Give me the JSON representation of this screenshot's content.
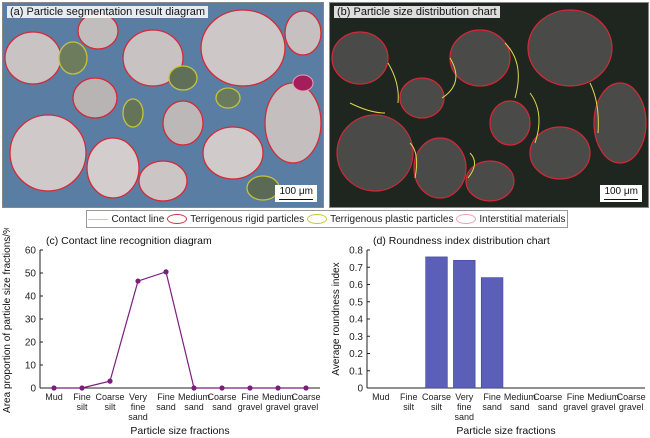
{
  "panels": {
    "a_title": "(a) Particle segmentation result diagram",
    "b_title": "(b) Particle size distribution chart",
    "scale_label": "100 μm"
  },
  "legend": {
    "items": [
      {
        "label": "Contact line",
        "color": "#d4d46a",
        "shape": "line"
      },
      {
        "label": "Terrigenous rigid particles",
        "color": "#cc3344",
        "shape": "ellipse"
      },
      {
        "label": "Terrigenous plastic particles",
        "color": "#c8c832",
        "shape": "ellipse"
      },
      {
        "label": "Interstitial materials",
        "color": "#e8a0b4",
        "shape": "ellipse"
      }
    ]
  },
  "chart_data": [
    {
      "type": "line",
      "title": "(c) Contact line recognition diagram",
      "xlabel": "Particle size fractions",
      "ylabel": "Area proportion of particle size fractions/%",
      "ylim": [
        0,
        60
      ],
      "yticks": [
        0,
        10,
        20,
        30,
        40,
        50,
        60
      ],
      "categories": [
        "Mud",
        "Fine silt",
        "Coarse silt",
        "Very fine sand",
        "Fine sand",
        "Medium sand",
        "Coarse sand",
        "Fine gravel",
        "Medium gravel",
        "Coarse gravel"
      ],
      "category_lines": [
        [
          "Mud"
        ],
        [
          "Fine",
          "silt"
        ],
        [
          "Coarse",
          "silt"
        ],
        [
          "Very",
          "fine",
          "sand"
        ],
        [
          "Fine",
          "sand"
        ],
        [
          "Medium",
          "sand"
        ],
        [
          "Coarse",
          "sand"
        ],
        [
          "Fine",
          "gravel"
        ],
        [
          "Medium",
          "gravel"
        ],
        [
          "Coarse",
          "gravel"
        ]
      ],
      "values": [
        0,
        0,
        3,
        46.5,
        50.5,
        0,
        0,
        0,
        0,
        0
      ],
      "color": "#7b1f7b"
    },
    {
      "type": "bar",
      "title": "(d) Roundness index distribution chart",
      "xlabel": "Particle size fractions",
      "ylabel": "Average roundness index",
      "ylim": [
        0,
        0.8
      ],
      "yticks": [
        "0",
        "0.1",
        "0.2",
        "0.3",
        "0.4",
        "0.5",
        "0.6",
        "0.7",
        "0.8"
      ],
      "categories": [
        "Mud",
        "Fine silt",
        "Coarse silt",
        "Very fine sand",
        "Fine sand",
        "Medium sand",
        "Coarse sand",
        "Fine gravel",
        "Medium gravel",
        "Coarse gravel"
      ],
      "category_lines": [
        [
          "Mud"
        ],
        [
          "Fine",
          "silt"
        ],
        [
          "Coarse",
          "silt"
        ],
        [
          "Very",
          "fine",
          "sand"
        ],
        [
          "Fine",
          "sand"
        ],
        [
          "Medium",
          "sand"
        ],
        [
          "Coarse",
          "sand"
        ],
        [
          "Fine",
          "gravel"
        ],
        [
          "Medium",
          "gravel"
        ],
        [
          "Coarse",
          "gravel"
        ]
      ],
      "values": [
        0,
        0,
        0.76,
        0.74,
        0.64,
        0,
        0,
        0,
        0,
        0
      ],
      "color": "#5b5fb8"
    }
  ]
}
